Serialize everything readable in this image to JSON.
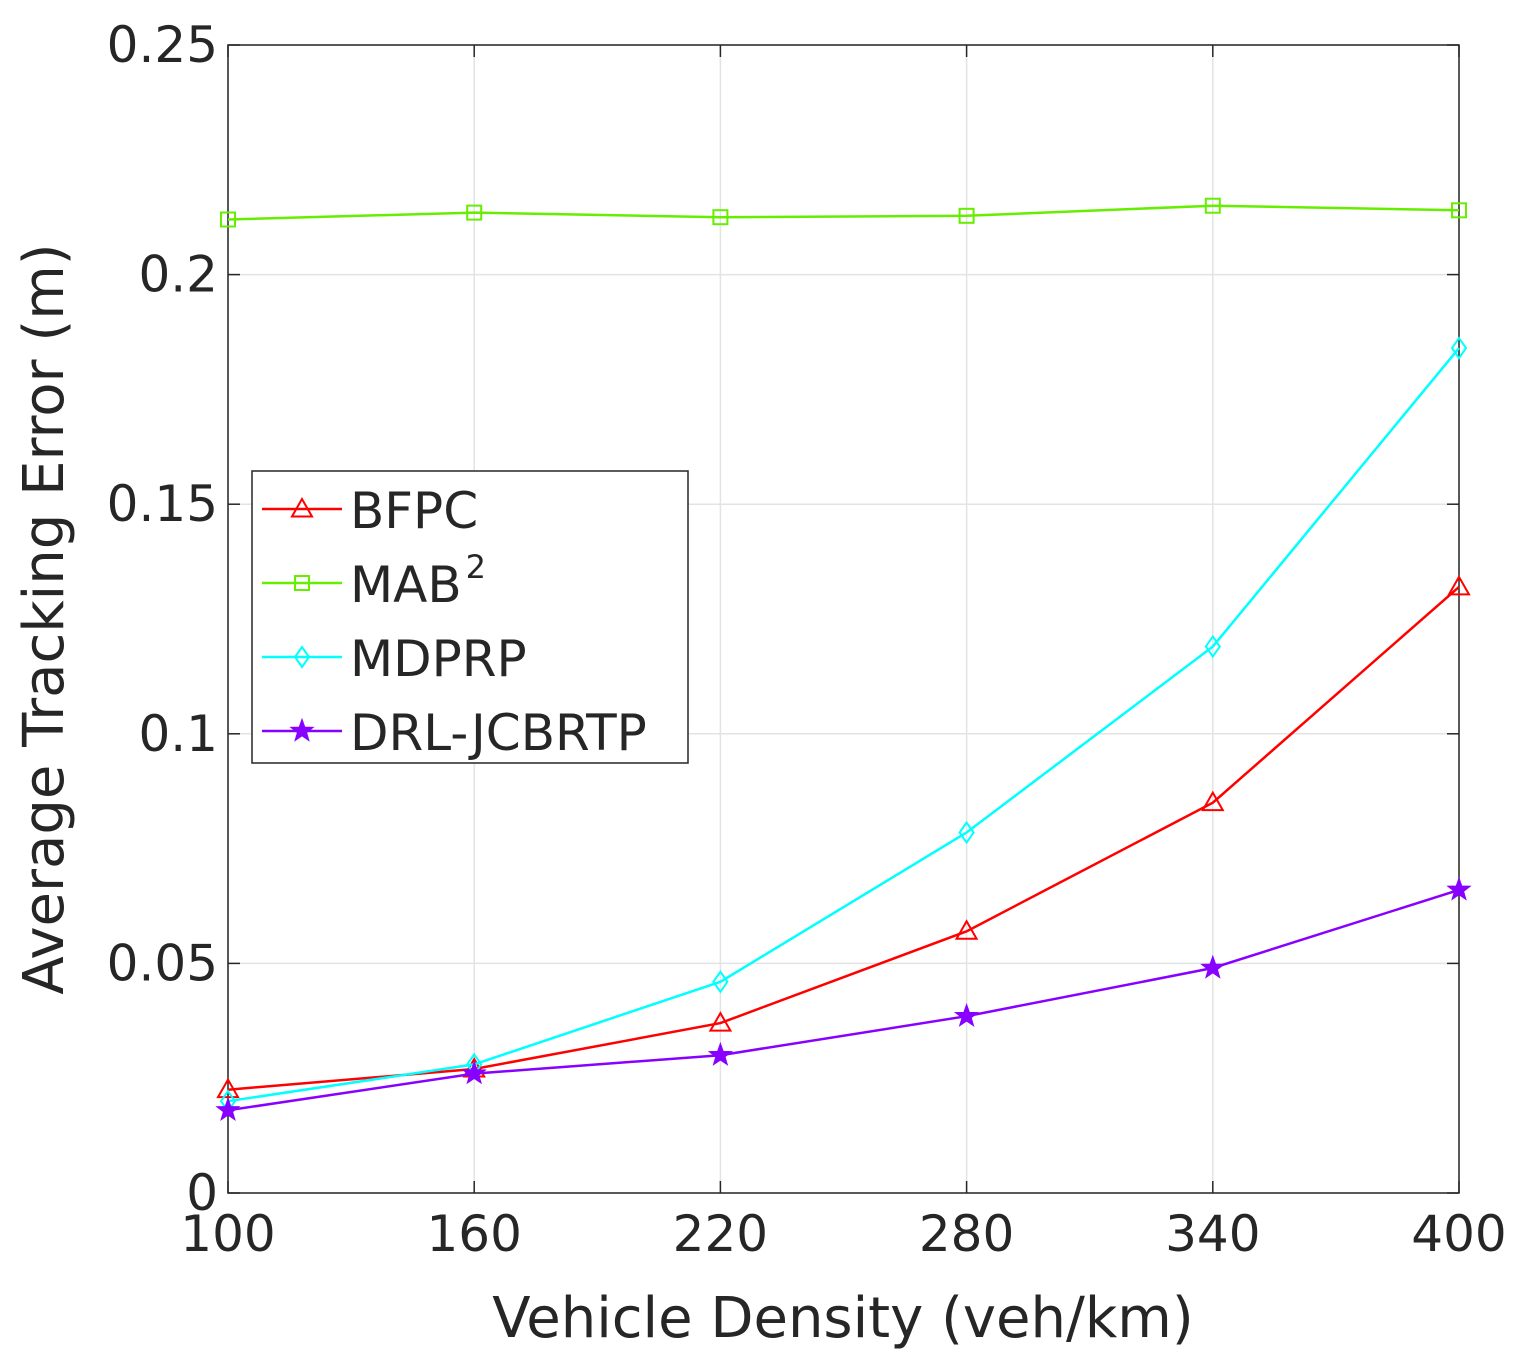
{
  "chart_data": {
    "type": "line",
    "title": "",
    "xlabel": "Vehicle Density (veh/km)",
    "ylabel": "Average Tracking Error (m)",
    "x": [
      100,
      160,
      220,
      280,
      340,
      400
    ],
    "xticks": [
      "100",
      "160",
      "220",
      "280",
      "340",
      "400"
    ],
    "yticks": [
      "0",
      "0.05",
      "0.1",
      "0.15",
      "0.2",
      "0.25"
    ],
    "ytick_values": [
      0,
      0.05,
      0.1,
      0.15,
      0.2,
      0.25
    ],
    "xlim": [
      100,
      400
    ],
    "ylim": [
      0,
      0.25
    ],
    "grid": true,
    "legend_position": "center-left",
    "series": [
      {
        "name": "BFPC",
        "label_main": "BFPC",
        "label_sup": "",
        "color": "#ff0000",
        "marker": "triangle",
        "values": [
          0.0225,
          0.027,
          0.037,
          0.057,
          0.085,
          0.132
        ]
      },
      {
        "name": "MAB2",
        "label_main": "MAB",
        "label_sup": "2",
        "color": "#66ee00",
        "marker": "square",
        "values": [
          0.212,
          0.2135,
          0.2125,
          0.2128,
          0.215,
          0.214
        ]
      },
      {
        "name": "MDPRP",
        "label_main": "MDPRP",
        "label_sup": "",
        "color": "#00ffff",
        "marker": "diamond",
        "values": [
          0.02,
          0.028,
          0.046,
          0.0785,
          0.119,
          0.184
        ]
      },
      {
        "name": "DRL-JCBRTP",
        "label_main": "DRL-JCBRTP",
        "label_sup": "",
        "color": "#8800ff",
        "marker": "star",
        "values": [
          0.018,
          0.026,
          0.03,
          0.0385,
          0.049,
          0.066
        ]
      }
    ]
  }
}
